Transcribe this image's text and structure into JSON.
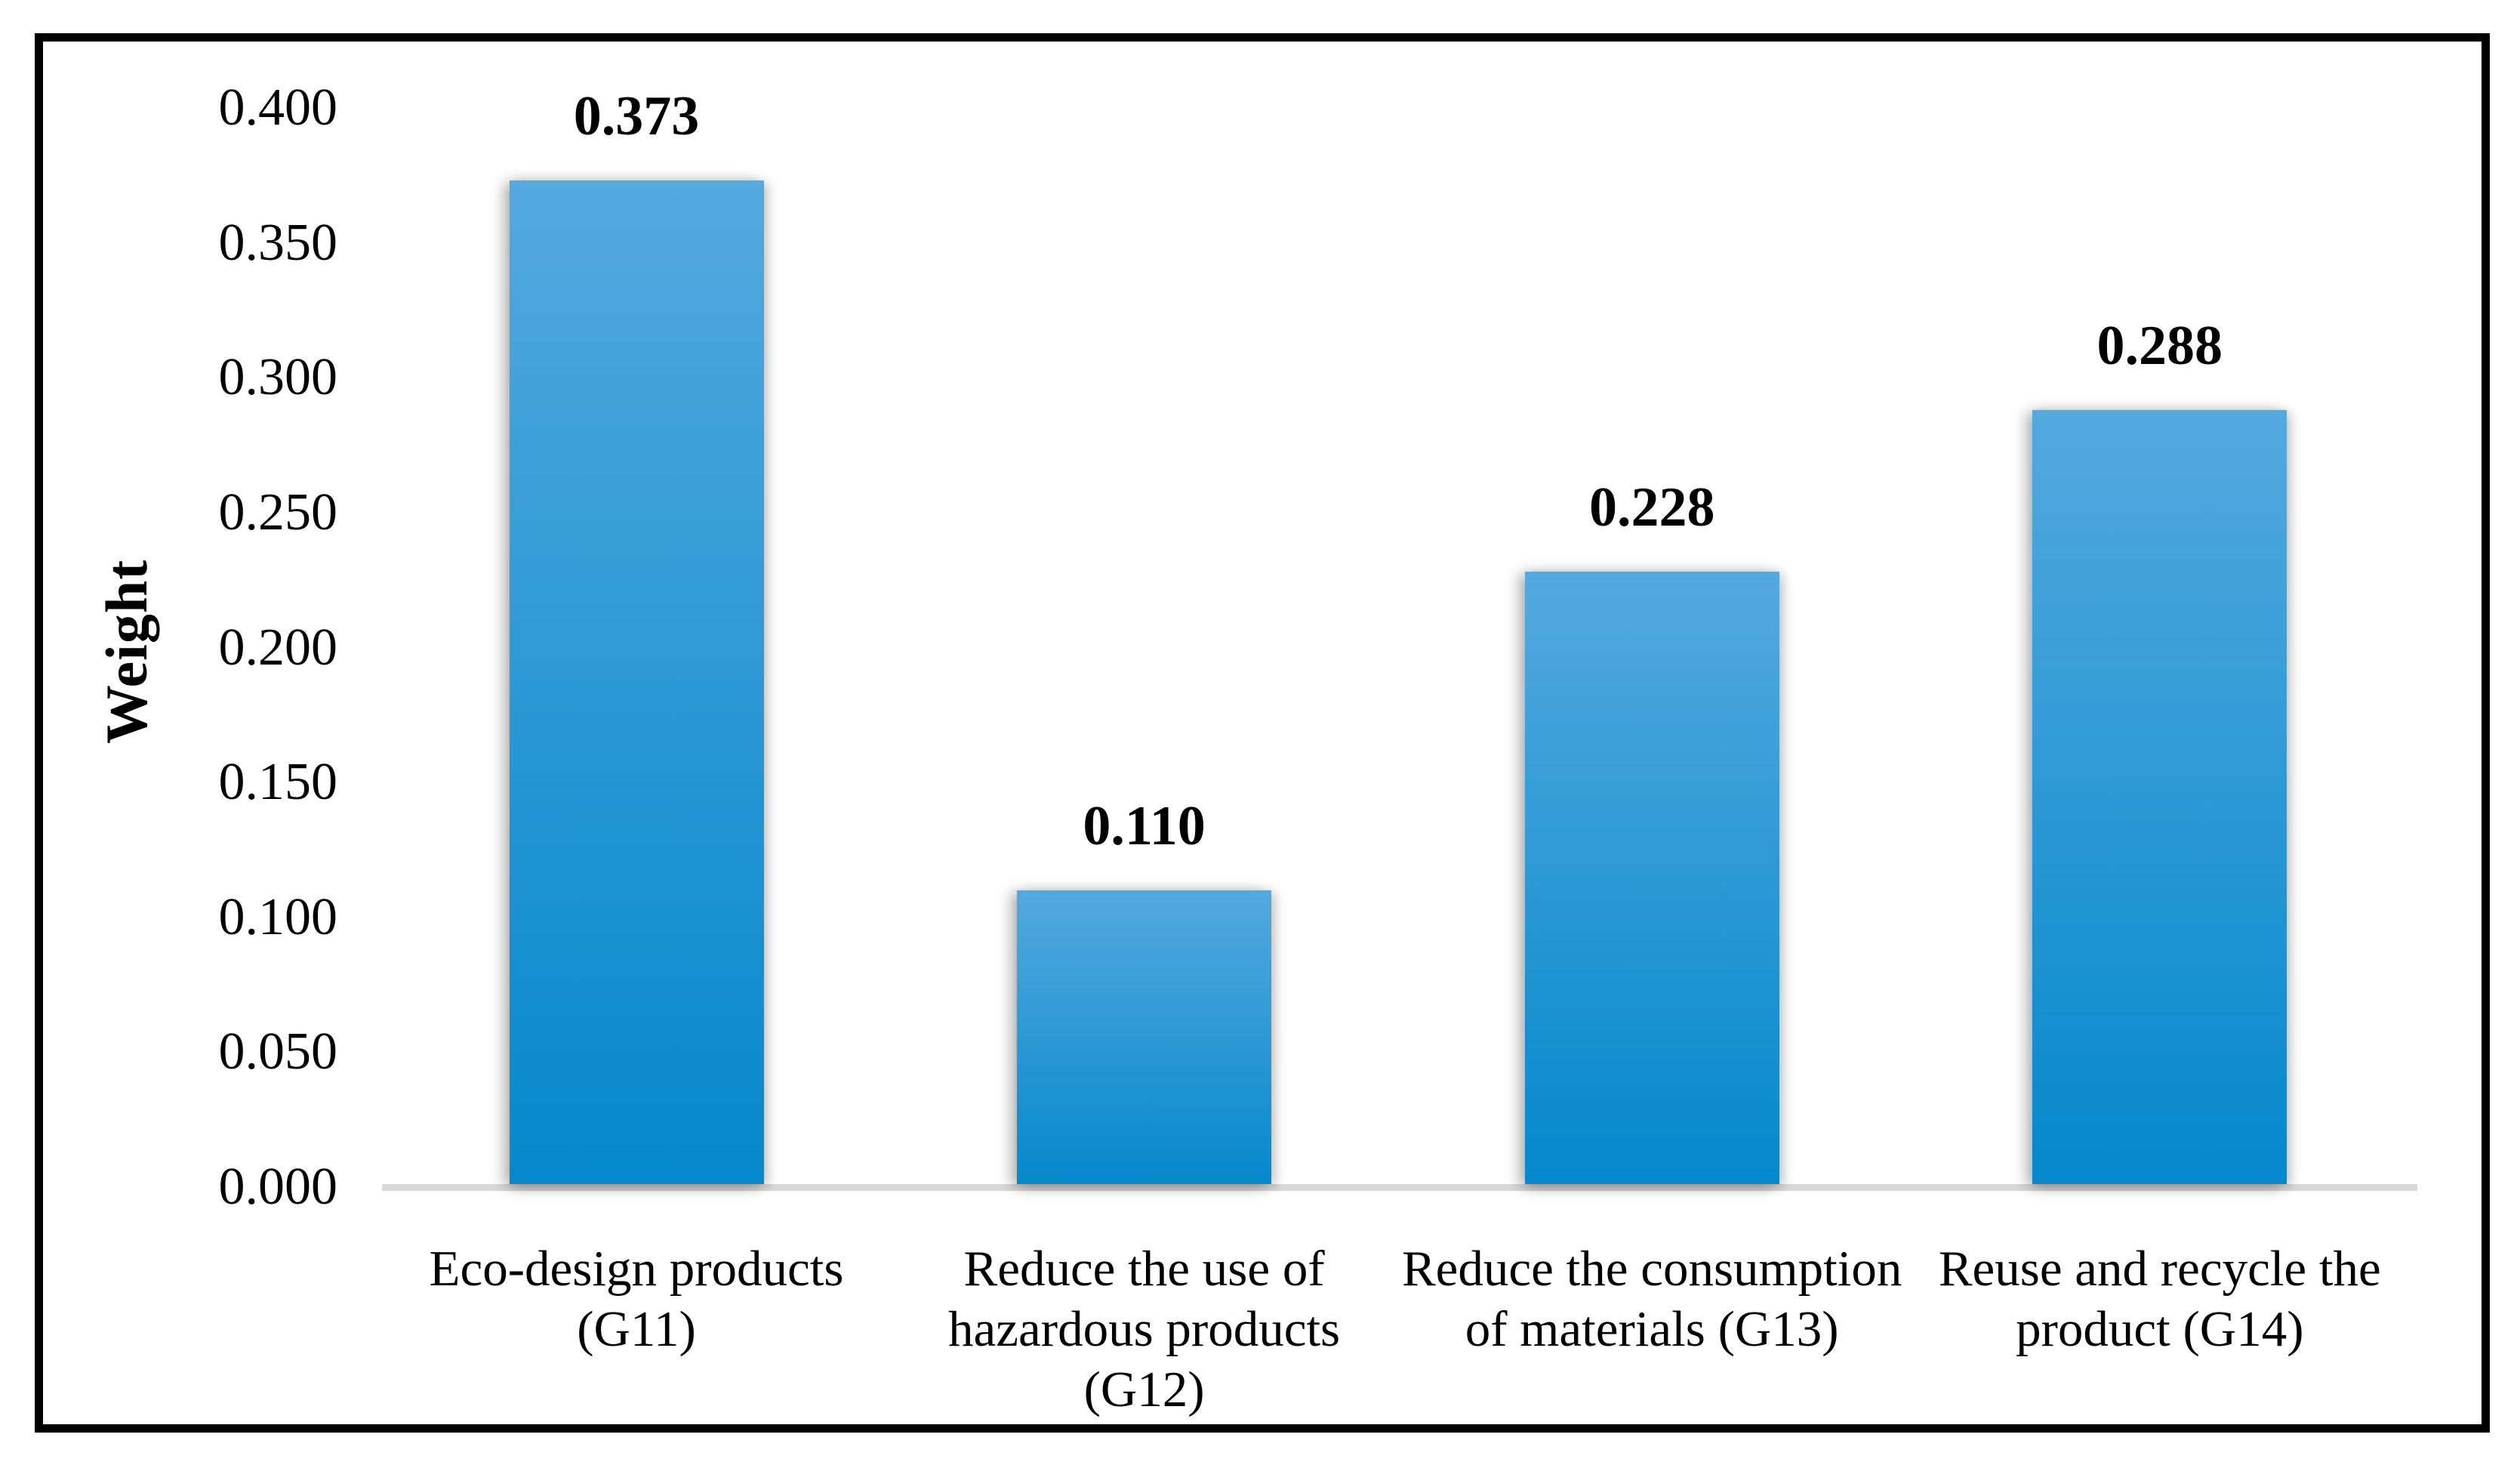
{
  "chart_data": {
    "type": "bar",
    "title": "",
    "xlabel": "",
    "ylabel": "Weight",
    "categories": [
      "Eco-design products\n(G11)",
      "Reduce the use of\nhazardous products\n(G12)",
      "Reduce the consumption\nof materials (G13)",
      "Reuse and recycle the\nproduct (G14)"
    ],
    "values": [
      0.373,
      0.11,
      0.228,
      0.288
    ],
    "value_labels": [
      "0.373",
      "0.110",
      "0.228",
      "0.288"
    ],
    "ylim": [
      0,
      0.4
    ],
    "ytick_step": 0.05,
    "ytick_labels": [
      "0.000",
      "0.050",
      "0.100",
      "0.150",
      "0.200",
      "0.250",
      "0.300",
      "0.350",
      "0.400"
    ],
    "grid": false,
    "legend_position": "none",
    "colors": {
      "bar_gradient_top": "#54A9DE",
      "bar_gradient_bottom": "#0588CC",
      "axis_line": "#D9D9D9",
      "frame_border": "#000000",
      "text": "#000000",
      "background": "#FFFFFF"
    }
  }
}
